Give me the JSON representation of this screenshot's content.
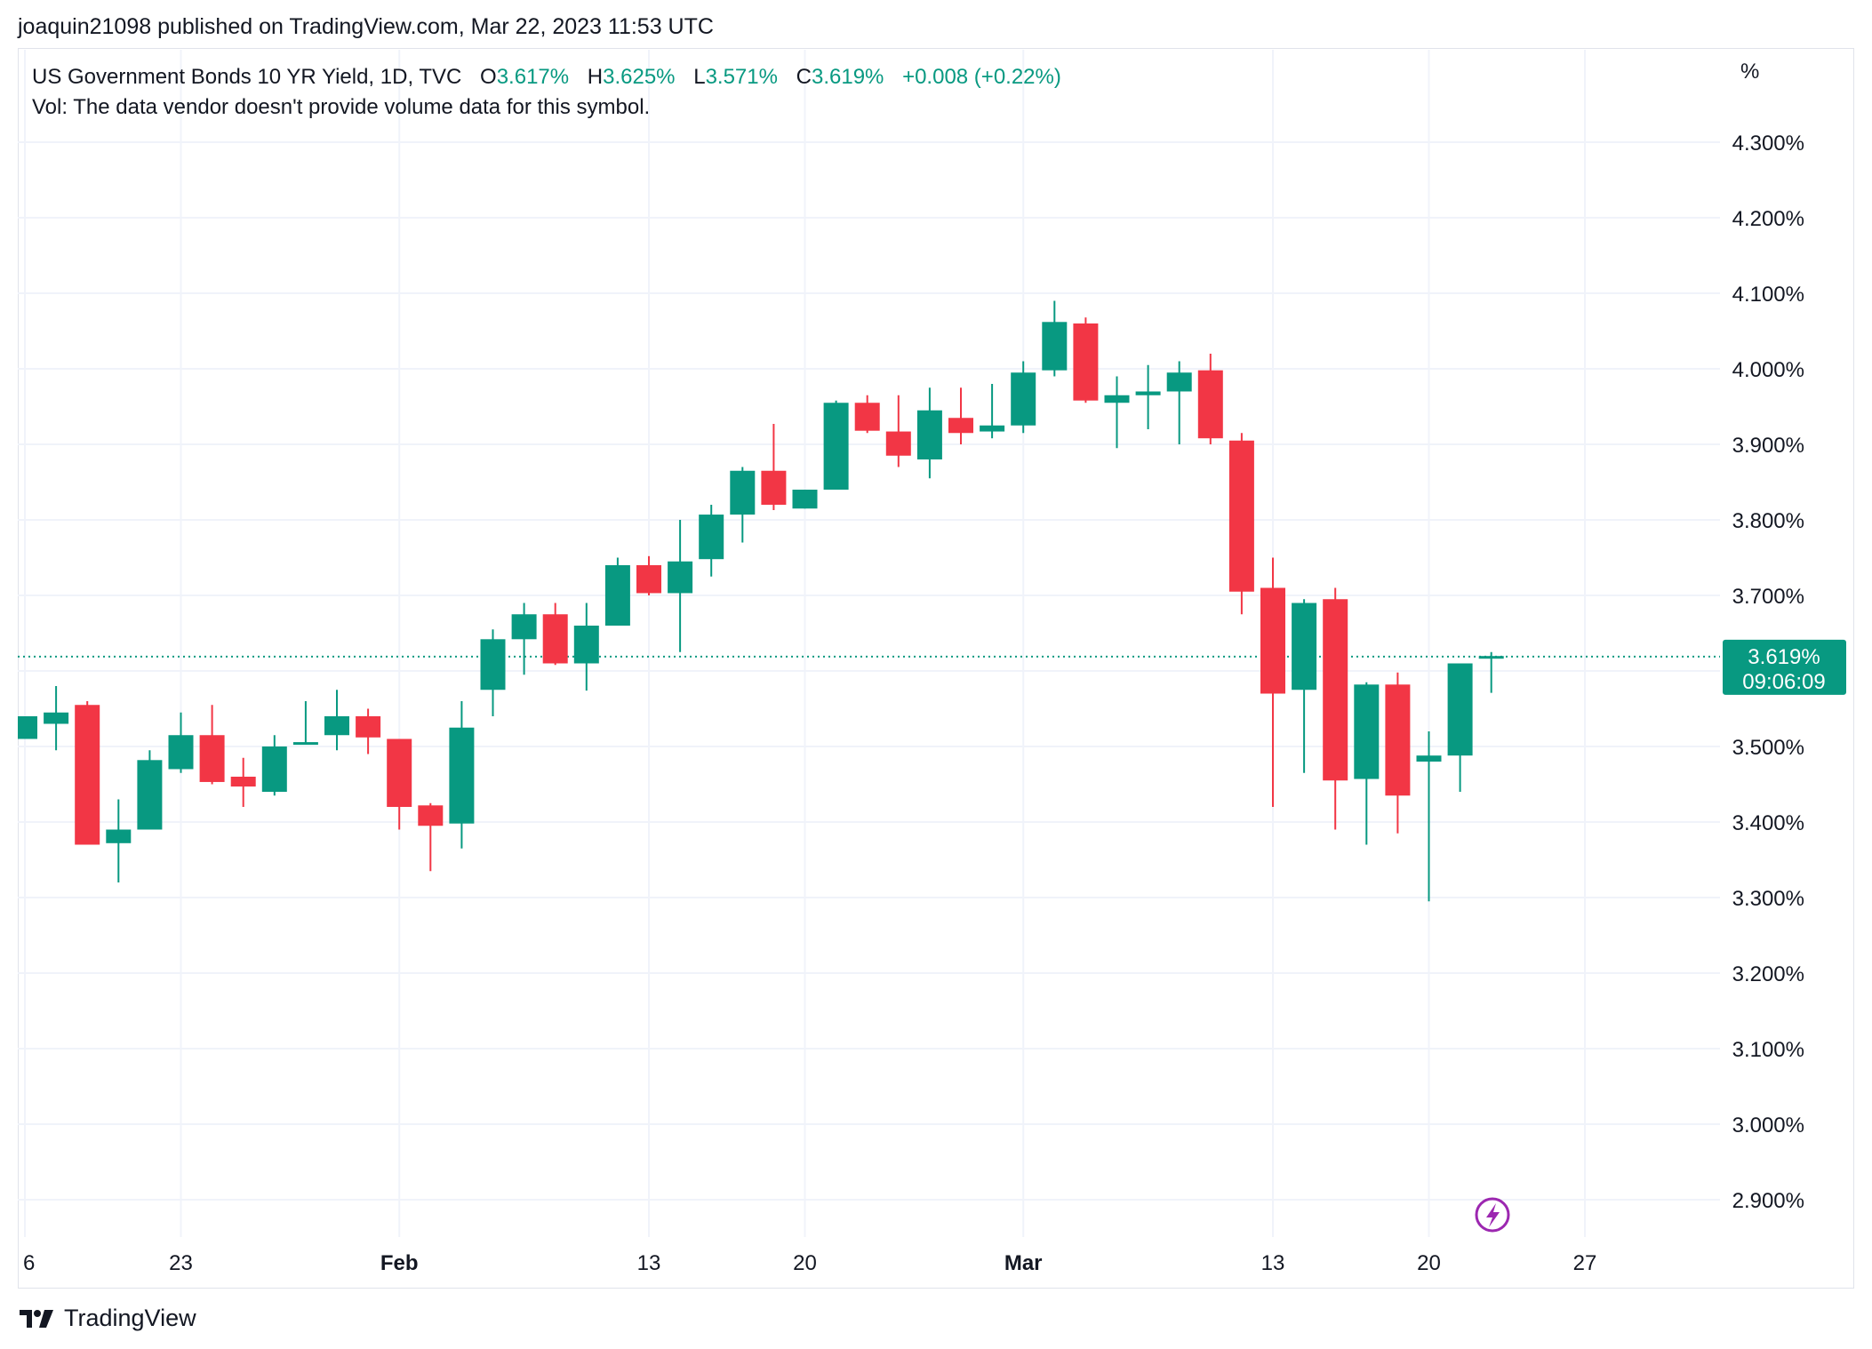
{
  "header": {
    "published_text": "joaquin21098 published on TradingView.com, Mar 22, 2023 11:53 UTC"
  },
  "legend": {
    "symbol": "US Government Bonds 10 YR Yield, 1D, TVC",
    "open_label": "O",
    "open": "3.617%",
    "high_label": "H",
    "high": "3.625%",
    "low_label": "L",
    "low": "3.571%",
    "close_label": "C",
    "close": "3.619%",
    "change": "+0.008 (+0.22%)",
    "vol_text": "Vol: The data vendor doesn't provide volume data for this symbol."
  },
  "price_badge": {
    "price": "3.619%",
    "countdown": "09:06:09"
  },
  "footer": {
    "brand": "TradingView"
  },
  "colors": {
    "up": "#089981",
    "down": "#f23645",
    "grid": "#f0f3fa",
    "text": "#131722",
    "border": "#e0e3eb",
    "lightning": "#9c27b0"
  },
  "chart_data": {
    "type": "candlestick",
    "y_unit": "%",
    "ylim": [
      2.85,
      4.38
    ],
    "y_ticks": [
      2.9,
      3.0,
      3.1,
      3.2,
      3.3,
      3.4,
      3.5,
      3.6,
      3.7,
      3.8,
      3.9,
      4.0,
      4.1,
      4.2,
      4.3
    ],
    "y_tick_labels": [
      "2.900%",
      "3.000%",
      "3.100%",
      "3.200%",
      "3.300%",
      "3.400%",
      "3.500%",
      "3.600%",
      "3.700%",
      "3.800%",
      "3.900%",
      "4.000%",
      "4.100%",
      "4.200%",
      "4.300%"
    ],
    "x_ticks": [
      {
        "label": "6",
        "date": "2023-01-16",
        "bold": false
      },
      {
        "label": "23",
        "date": "2023-01-23",
        "bold": false
      },
      {
        "label": "Feb",
        "date": "2023-02-01",
        "bold": true
      },
      {
        "label": "13",
        "date": "2023-02-13",
        "bold": false
      },
      {
        "label": "20",
        "date": "2023-02-20",
        "bold": false
      },
      {
        "label": "Mar",
        "date": "2023-03-01",
        "bold": true
      },
      {
        "label": "13",
        "date": "2023-03-13",
        "bold": false
      },
      {
        "label": "20",
        "date": "2023-03-20",
        "bold": false
      },
      {
        "label": "27",
        "date": "2023-03-27",
        "bold": false
      }
    ],
    "last_price": 3.619,
    "candles": [
      {
        "date": "2023-01-16",
        "o": 3.51,
        "h": 3.54,
        "l": 3.51,
        "c": 3.54
      },
      {
        "date": "2023-01-17",
        "o": 3.53,
        "h": 3.58,
        "l": 3.495,
        "c": 3.545
      },
      {
        "date": "2023-01-18",
        "o": 3.555,
        "h": 3.56,
        "l": 3.37,
        "c": 3.37
      },
      {
        "date": "2023-01-19",
        "o": 3.372,
        "h": 3.43,
        "l": 3.32,
        "c": 3.39
      },
      {
        "date": "2023-01-20",
        "o": 3.39,
        "h": 3.495,
        "l": 3.39,
        "c": 3.482
      },
      {
        "date": "2023-01-23",
        "o": 3.47,
        "h": 3.545,
        "l": 3.465,
        "c": 3.515
      },
      {
        "date": "2023-01-24",
        "o": 3.515,
        "h": 3.555,
        "l": 3.45,
        "c": 3.453
      },
      {
        "date": "2023-01-25",
        "o": 3.46,
        "h": 3.485,
        "l": 3.42,
        "c": 3.447
      },
      {
        "date": "2023-01-26",
        "o": 3.44,
        "h": 3.515,
        "l": 3.435,
        "c": 3.5
      },
      {
        "date": "2023-01-27",
        "o": 3.503,
        "h": 3.56,
        "l": 3.503,
        "c": 3.505
      },
      {
        "date": "2023-01-30",
        "o": 3.515,
        "h": 3.575,
        "l": 3.495,
        "c": 3.54
      },
      {
        "date": "2023-01-31",
        "o": 3.54,
        "h": 3.55,
        "l": 3.49,
        "c": 3.512
      },
      {
        "date": "2023-02-01",
        "o": 3.51,
        "h": 3.51,
        "l": 3.39,
        "c": 3.42
      },
      {
        "date": "2023-02-02",
        "o": 3.422,
        "h": 3.425,
        "l": 3.335,
        "c": 3.395
      },
      {
        "date": "2023-02-03",
        "o": 3.398,
        "h": 3.56,
        "l": 3.365,
        "c": 3.525
      },
      {
        "date": "2023-02-06",
        "o": 3.575,
        "h": 3.655,
        "l": 3.54,
        "c": 3.642
      },
      {
        "date": "2023-02-07",
        "o": 3.642,
        "h": 3.69,
        "l": 3.595,
        "c": 3.675
      },
      {
        "date": "2023-02-08",
        "o": 3.675,
        "h": 3.69,
        "l": 3.608,
        "c": 3.61
      },
      {
        "date": "2023-02-09",
        "o": 3.61,
        "h": 3.69,
        "l": 3.574,
        "c": 3.66
      },
      {
        "date": "2023-02-10",
        "o": 3.66,
        "h": 3.75,
        "l": 3.66,
        "c": 3.74
      },
      {
        "date": "2023-02-13",
        "o": 3.74,
        "h": 3.752,
        "l": 3.7,
        "c": 3.703
      },
      {
        "date": "2023-02-14",
        "o": 3.703,
        "h": 3.8,
        "l": 3.625,
        "c": 3.745
      },
      {
        "date": "2023-02-15",
        "o": 3.748,
        "h": 3.82,
        "l": 3.725,
        "c": 3.807
      },
      {
        "date": "2023-02-16",
        "o": 3.807,
        "h": 3.87,
        "l": 3.77,
        "c": 3.865
      },
      {
        "date": "2023-02-17",
        "o": 3.865,
        "h": 3.927,
        "l": 3.813,
        "c": 3.82
      },
      {
        "date": "2023-02-20",
        "o": 3.815,
        "h": 3.84,
        "l": 3.815,
        "c": 3.84
      },
      {
        "date": "2023-02-21",
        "o": 3.84,
        "h": 3.958,
        "l": 3.84,
        "c": 3.955
      },
      {
        "date": "2023-02-22",
        "o": 3.955,
        "h": 3.965,
        "l": 3.915,
        "c": 3.918
      },
      {
        "date": "2023-02-23",
        "o": 3.917,
        "h": 3.965,
        "l": 3.87,
        "c": 3.885
      },
      {
        "date": "2023-02-24",
        "o": 3.88,
        "h": 3.975,
        "l": 3.855,
        "c": 3.945
      },
      {
        "date": "2023-02-27",
        "o": 3.935,
        "h": 3.975,
        "l": 3.9,
        "c": 3.915
      },
      {
        "date": "2023-02-28",
        "o": 3.917,
        "h": 3.98,
        "l": 3.908,
        "c": 3.925
      },
      {
        "date": "2023-03-01",
        "o": 3.925,
        "h": 4.01,
        "l": 3.915,
        "c": 3.995
      },
      {
        "date": "2023-03-02",
        "o": 3.998,
        "h": 4.09,
        "l": 3.99,
        "c": 4.062
      },
      {
        "date": "2023-03-03",
        "o": 4.06,
        "h": 4.068,
        "l": 3.955,
        "c": 3.958
      },
      {
        "date": "2023-03-06",
        "o": 3.955,
        "h": 3.99,
        "l": 3.895,
        "c": 3.965
      },
      {
        "date": "2023-03-07",
        "o": 3.965,
        "h": 4.005,
        "l": 3.92,
        "c": 3.97
      },
      {
        "date": "2023-03-08",
        "o": 3.97,
        "h": 4.01,
        "l": 3.9,
        "c": 3.995
      },
      {
        "date": "2023-03-09",
        "o": 3.998,
        "h": 4.02,
        "l": 3.9,
        "c": 3.908
      },
      {
        "date": "2023-03-10",
        "o": 3.905,
        "h": 3.915,
        "l": 3.675,
        "c": 3.705
      },
      {
        "date": "2023-03-13",
        "o": 3.71,
        "h": 3.75,
        "l": 3.42,
        "c": 3.57
      },
      {
        "date": "2023-03-14",
        "o": 3.575,
        "h": 3.695,
        "l": 3.465,
        "c": 3.69
      },
      {
        "date": "2023-03-15",
        "o": 3.695,
        "h": 3.71,
        "l": 3.39,
        "c": 3.455
      },
      {
        "date": "2023-03-16",
        "o": 3.457,
        "h": 3.585,
        "l": 3.37,
        "c": 3.582
      },
      {
        "date": "2023-03-17",
        "o": 3.582,
        "h": 3.598,
        "l": 3.385,
        "c": 3.435
      },
      {
        "date": "2023-03-20",
        "o": 3.48,
        "h": 3.52,
        "l": 3.295,
        "c": 3.488
      },
      {
        "date": "2023-03-21",
        "o": 3.488,
        "h": 3.61,
        "l": 3.44,
        "c": 3.61
      },
      {
        "date": "2023-03-22",
        "o": 3.617,
        "h": 3.625,
        "l": 3.571,
        "c": 3.619
      }
    ]
  }
}
